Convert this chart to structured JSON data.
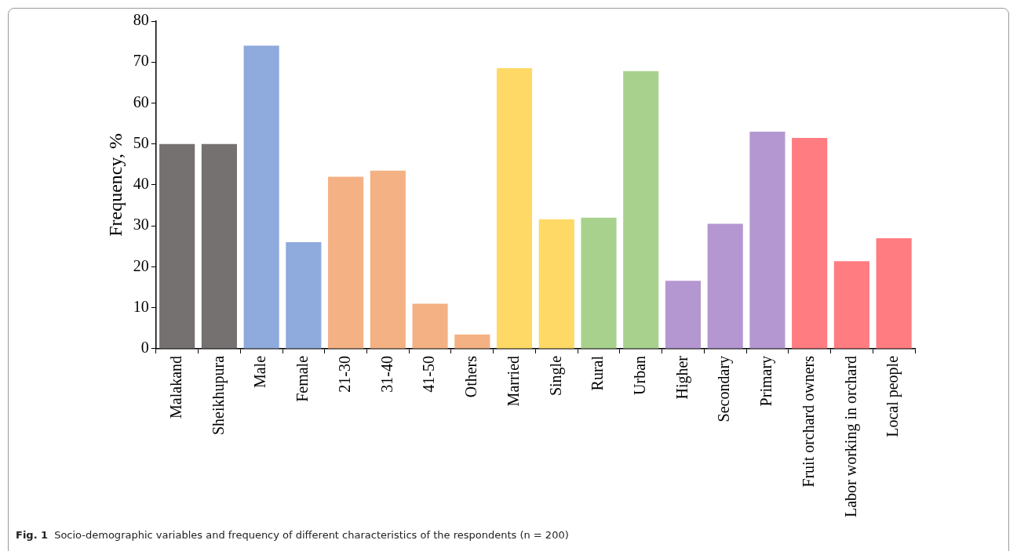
{
  "chart_data": {
    "type": "bar",
    "ylabel": "Frequency, %",
    "categories": [
      "Malakand",
      "Sheikhupura",
      "Male",
      "Female",
      "21-30",
      "31-40",
      "41-50",
      "Others",
      "Married",
      "Single",
      "Rural",
      "Urban",
      "Higher",
      "Secondary",
      "Primary",
      "Fruit orchard owners",
      "Labor working in orchard",
      "Local people"
    ],
    "values": [
      50,
      50,
      74,
      26,
      42,
      43.5,
      11,
      3.5,
      68.5,
      31.6,
      32,
      67.8,
      16.6,
      30.5,
      53,
      51.5,
      21.4,
      27
    ],
    "colors": [
      "#757171",
      "#757171",
      "#8faadc",
      "#8faadc",
      "#f4b183",
      "#f4b183",
      "#f4b183",
      "#f4b183",
      "#ffd966",
      "#ffd966",
      "#a9d18e",
      "#a9d18e",
      "#b497d0",
      "#b497d0",
      "#b497d0",
      "#ff7c80",
      "#ff7c80",
      "#ff7c80"
    ],
    "ylim": [
      0,
      80
    ],
    "yticks": [
      0,
      10,
      20,
      30,
      40,
      50,
      60,
      70,
      80
    ],
    "grid": false,
    "legend": false,
    "annotations": [
      "Fig. 1",
      "Socio-demographic variables and frequency of different characteristics of the respondents (n = 200)"
    ]
  }
}
